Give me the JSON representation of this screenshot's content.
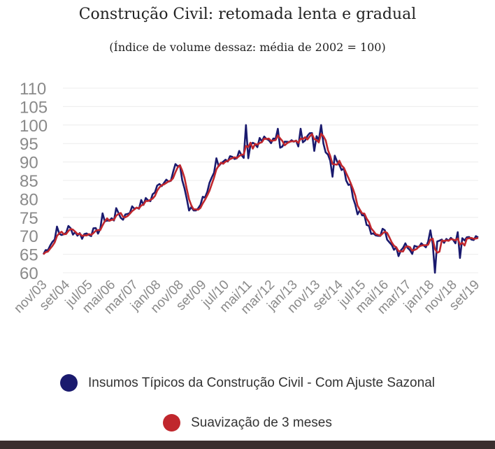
{
  "chart_data": {
    "type": "line",
    "title": "Construção Civil: retomada lenta e gradual",
    "subtitle": "(Índice de volume dessaz: média de 2002 = 100)",
    "xlabel": "",
    "ylabel": "",
    "ylim": [
      60,
      110
    ],
    "yticks": [
      110,
      105,
      100,
      95,
      90,
      85,
      80,
      75,
      70,
      65,
      60
    ],
    "xtick_labels": [
      "nov/03",
      "set/04",
      "jul/05",
      "mai/06",
      "mar/07",
      "jan/08",
      "nov/08",
      "set/09",
      "jul/10",
      "mai/11",
      "mar/12",
      "jan/13",
      "nov/13",
      "set/14",
      "jul/15",
      "mai/16",
      "mar/17",
      "jan/18",
      "nov/18",
      "set/19"
    ],
    "x_range": [
      "nov/03",
      "out/19"
    ],
    "grid": "horizontal",
    "legend_position": "bottom",
    "keyframes": [
      [
        "nov/03",
        65
      ],
      [
        "fev/04",
        68
      ],
      [
        "abr/04",
        69
      ],
      [
        "jul/04",
        70
      ],
      [
        "out/04",
        72
      ],
      [
        "jan/05",
        71
      ],
      [
        "abr/05",
        70
      ],
      [
        "jul/05",
        71
      ],
      [
        "out/05",
        71
      ],
      [
        "dez/05",
        72
      ],
      [
        "jan/06",
        75
      ],
      [
        "abr/06",
        74
      ],
      [
        "jul/06",
        75
      ],
      [
        "out/06",
        75
      ],
      [
        "jan/07",
        77
      ],
      [
        "abr/07",
        78
      ],
      [
        "jul/07",
        79
      ],
      [
        "out/07",
        80
      ],
      [
        "jan/08",
        83
      ],
      [
        "abr/08",
        85
      ],
      [
        "jul/08",
        86
      ],
      [
        "set/08",
        89
      ],
      [
        "nov/08",
        88
      ],
      [
        "jan/09",
        83
      ],
      [
        "mar/09",
        77
      ],
      [
        "jun/09",
        77
      ],
      [
        "set/09",
        80
      ],
      [
        "jan/10",
        85
      ],
      [
        "mai/10",
        89
      ],
      [
        "set/10",
        92
      ],
      [
        "jan/11",
        91
      ],
      [
        "abr/11",
        92
      ],
      [
        "jun/11",
        95
      ],
      [
        "set/11",
        95
      ],
      [
        "dez/11",
        96
      ],
      [
        "mar/12",
        96
      ],
      [
        "jun/12",
        95
      ],
      [
        "set/12",
        95
      ],
      [
        "dez/12",
        95
      ],
      [
        "mar/13",
        95
      ],
      [
        "jun/13",
        97
      ],
      [
        "set/13",
        97
      ],
      [
        "dez/13",
        97
      ],
      [
        "fev/14",
        95
      ],
      [
        "mai/14",
        91
      ],
      [
        "ago/14",
        91
      ],
      [
        "nov/14",
        88
      ],
      [
        "fev/15",
        82
      ],
      [
        "mai/15",
        77
      ],
      [
        "ago/15",
        75
      ],
      [
        "nov/15",
        70
      ],
      [
        "fev/16",
        71
      ],
      [
        "mai/16",
        71
      ],
      [
        "ago/16",
        68
      ],
      [
        "nov/16",
        66
      ],
      [
        "fev/17",
        67
      ],
      [
        "mai/17",
        66
      ],
      [
        "ago/17",
        67
      ],
      [
        "nov/17",
        67
      ],
      [
        "fev/18",
        68
      ],
      [
        "mai/18",
        68
      ],
      [
        "ago/18",
        68
      ],
      [
        "nov/18",
        69
      ],
      [
        "fev/19",
        69
      ],
      [
        "mai/19",
        69
      ],
      [
        "ago/19",
        69
      ],
      [
        "out/19",
        69
      ]
    ],
    "series": [
      {
        "name": "Insumos Típicos da Construção Civil - Com Ajuste Sazonal",
        "color": "#1a1a6e",
        "noise_seed": 7,
        "noise_amplitude": 1.2,
        "spikes": [
          [
            "mai/04",
            72.5
          ],
          [
            "jul/06",
            77.5
          ],
          [
            "mar/10",
            91
          ],
          [
            "jan/11",
            93
          ],
          [
            "abr/11",
            100
          ],
          [
            "mai/11",
            91
          ],
          [
            "jun/12",
            99
          ],
          [
            "jan/13",
            95.5
          ],
          [
            "abr/13",
            99
          ],
          [
            "jan/14",
            100
          ],
          [
            "out/13",
            93
          ],
          [
            "jun/14",
            86
          ],
          [
            "fev/15",
            84
          ],
          [
            "fev/16",
            70
          ],
          [
            "mai/16",
            71.5
          ],
          [
            "nov/16",
            64.5
          ],
          [
            "jan/18",
            71.5
          ],
          [
            "mar/18",
            60
          ],
          [
            "jan/19",
            71
          ],
          [
            "fev/19",
            64
          ]
        ]
      },
      {
        "name": "Suavização de 3 meses",
        "color": "#c0272d",
        "smoothing_window": 3
      }
    ]
  },
  "legend": [
    {
      "label": "Insumos Típicos da Construção Civil - Com Ajuste Sazonal",
      "color": "#1a1a6e"
    },
    {
      "label": "Suavização de 3 meses",
      "color": "#c0272d"
    }
  ]
}
